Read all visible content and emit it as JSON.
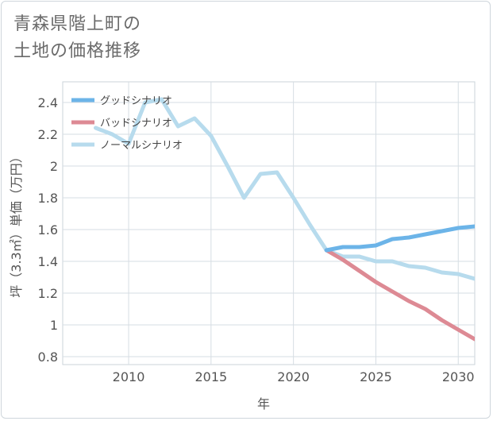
{
  "header": {
    "title_line1": "青森県階上町の",
    "title_line2": "土地の価格推移"
  },
  "chart_data": {
    "type": "line",
    "title": "青森県階上町の土地の価格推移",
    "xlabel": "年",
    "ylabel": "坪（3.3㎡）単価（万円）",
    "xlim": [
      2006,
      2031
    ],
    "ylim": [
      0.75,
      2.53
    ],
    "x_ticks": [
      2010,
      2015,
      2020,
      2025,
      2030
    ],
    "y_ticks": [
      0.8,
      1,
      1.2,
      1.4,
      1.6,
      1.8,
      2,
      2.2,
      2.4
    ],
    "grid": true,
    "legend_position": "top-left",
    "historical": {
      "x": [
        2008,
        2009,
        2010,
        2011,
        2012,
        2013,
        2014,
        2015,
        2016,
        2017,
        2018,
        2019,
        2020,
        2021,
        2022
      ],
      "y": [
        2.24,
        2.2,
        2.14,
        2.4,
        2.42,
        2.25,
        2.3,
        2.19,
        2.0,
        1.8,
        1.95,
        1.96,
        1.8,
        1.63,
        1.47
      ]
    },
    "series": [
      {
        "name": "グッドシナリオ",
        "color": "#6cb4e8",
        "x": [
          2022,
          2023,
          2024,
          2025,
          2026,
          2027,
          2028,
          2029,
          2030,
          2031
        ],
        "y": [
          1.47,
          1.49,
          1.49,
          1.5,
          1.54,
          1.55,
          1.57,
          1.59,
          1.61,
          1.62
        ]
      },
      {
        "name": "バッドシナリオ",
        "color": "#dd8a94",
        "x": [
          2022,
          2023,
          2024,
          2025,
          2026,
          2027,
          2028,
          2029,
          2030,
          2031
        ],
        "y": [
          1.47,
          1.41,
          1.34,
          1.27,
          1.21,
          1.15,
          1.1,
          1.03,
          0.97,
          0.91
        ]
      },
      {
        "name": "ノーマルシナリオ",
        "color": "#b7dbed",
        "x": [
          2022,
          2023,
          2024,
          2025,
          2026,
          2027,
          2028,
          2029,
          2030,
          2031
        ],
        "y": [
          1.47,
          1.43,
          1.43,
          1.4,
          1.4,
          1.37,
          1.36,
          1.33,
          1.32,
          1.29
        ]
      }
    ]
  }
}
